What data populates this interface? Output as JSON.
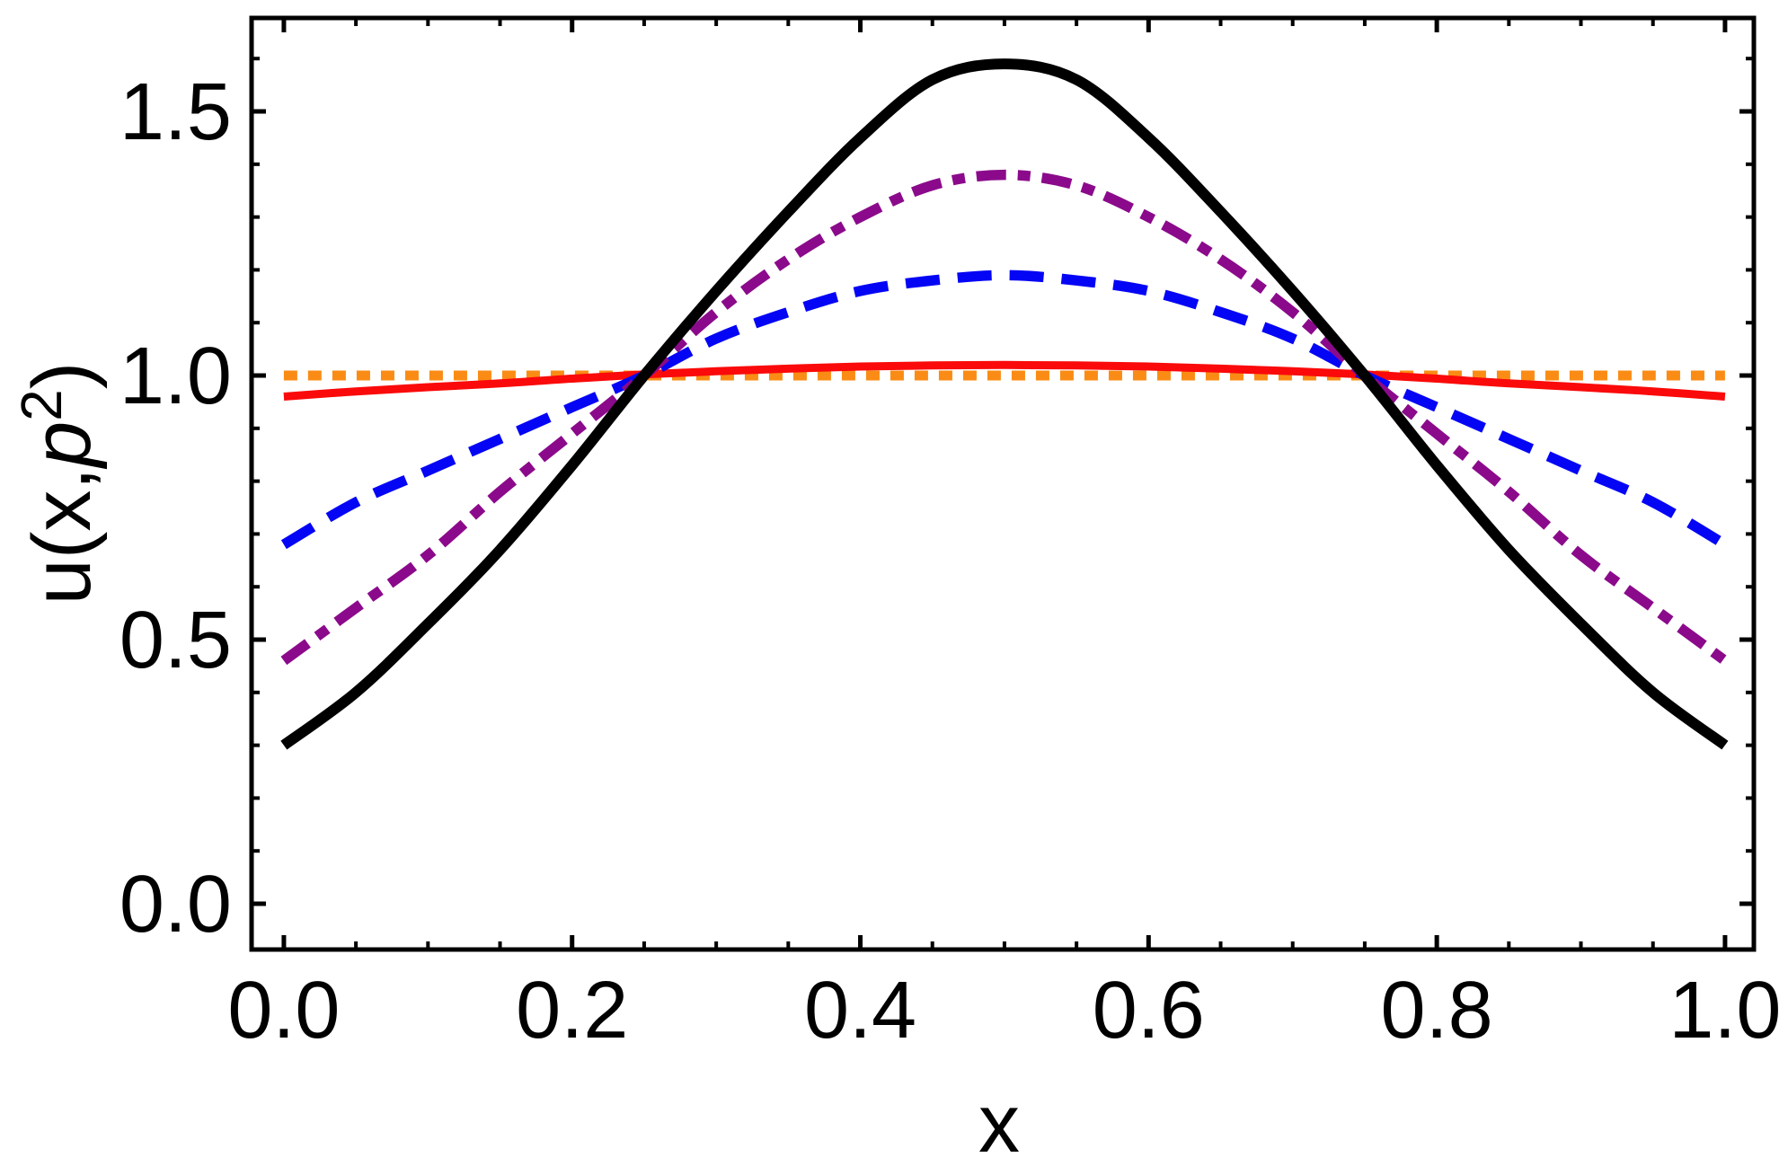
{
  "chart_data": {
    "type": "line",
    "title": "",
    "xlabel": "x",
    "ylabel": "u(x,p²)",
    "ylabel_parts": {
      "prefix": "u(x,",
      "italic_var": "p",
      "superscript": "2",
      "suffix": ")"
    },
    "frame": true,
    "grid": false,
    "legend": "none",
    "x_axis": {
      "range_displayed": [
        -0.02,
        1.02
      ],
      "major_ticks": [
        0.0,
        0.2,
        0.4,
        0.6,
        0.8,
        1.0
      ],
      "tick_labels": [
        "0.0",
        "0.2",
        "0.4",
        "0.6",
        "0.8",
        "1.0"
      ],
      "minor_tick_step": 0.05
    },
    "y_axis": {
      "range_displayed": [
        -0.09,
        1.68
      ],
      "major_ticks": [
        0.0,
        0.5,
        1.0,
        1.5
      ],
      "tick_labels": [
        "0.0",
        "0.5",
        "1.0",
        "1.5"
      ],
      "minor_tick_step": 0.1
    },
    "x": [
      0.0,
      0.05,
      0.1,
      0.15,
      0.2,
      0.25,
      0.3,
      0.35,
      0.4,
      0.45,
      0.5,
      0.55,
      0.6,
      0.65,
      0.7,
      0.75,
      0.8,
      0.85,
      0.9,
      0.95,
      1.0
    ],
    "series": [
      {
        "name": "u-flat-dotted-orange",
        "style": "dotted",
        "color": "#FA8C15",
        "stroke_width": 11,
        "dash": [
          15,
          12
        ],
        "values": [
          1.0,
          1.0,
          1.0,
          1.0,
          1.0,
          1.0,
          1.0,
          1.0,
          1.0,
          1.0,
          1.0,
          1.0,
          1.0,
          1.0,
          1.0,
          1.0,
          1.0,
          1.0,
          1.0,
          1.0,
          1.0
        ]
      },
      {
        "name": "u-near-flat-solid-red",
        "style": "solid",
        "color": "#FA0A0A",
        "stroke_width": 9,
        "dash": [],
        "values": [
          0.96,
          0.97,
          0.978,
          0.985,
          0.994,
          1.002,
          1.008,
          1.013,
          1.017,
          1.019,
          1.02,
          1.019,
          1.017,
          1.013,
          1.008,
          1.002,
          0.994,
          0.985,
          0.978,
          0.97,
          0.96
        ]
      },
      {
        "name": "u-dashed-blue",
        "style": "dashed",
        "color": "#0505F5",
        "stroke_width": 11.5,
        "dash": [
          38,
          20
        ],
        "values": [
          0.68,
          0.76,
          0.82,
          0.88,
          0.94,
          1.0,
          1.07,
          1.12,
          1.16,
          1.18,
          1.19,
          1.18,
          1.16,
          1.12,
          1.07,
          1.0,
          0.94,
          0.88,
          0.82,
          0.76,
          0.68
        ]
      },
      {
        "name": "u-dash-dot-purple",
        "style": "dash-dot",
        "color": "#8B0A8B",
        "stroke_width": 11.5,
        "dash": [
          33,
          13,
          14,
          13
        ],
        "values": [
          0.46,
          0.56,
          0.66,
          0.78,
          0.89,
          1.0,
          1.12,
          1.22,
          1.3,
          1.36,
          1.38,
          1.36,
          1.3,
          1.22,
          1.12,
          1.0,
          0.89,
          0.78,
          0.66,
          0.56,
          0.46
        ]
      },
      {
        "name": "u-peaked-solid-black",
        "style": "solid",
        "color": "#000000",
        "stroke_width": 12,
        "dash": [],
        "values": [
          0.3,
          0.4,
          0.53,
          0.67,
          0.83,
          1.0,
          1.16,
          1.31,
          1.45,
          1.56,
          1.59,
          1.56,
          1.45,
          1.31,
          1.16,
          1.0,
          0.83,
          0.67,
          0.53,
          0.4,
          0.3
        ]
      }
    ]
  }
}
